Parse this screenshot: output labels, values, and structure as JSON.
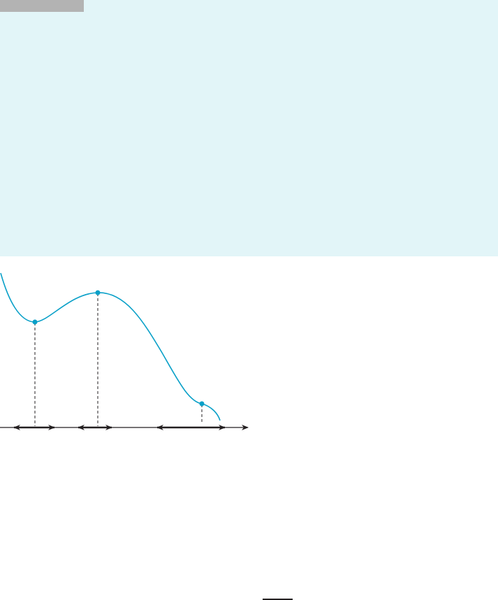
{
  "colors": {
    "panel_background": "#e2f5f8",
    "header_tab": "#b3b3b3",
    "curve": "#0aa0c8",
    "axis": "#231f20"
  },
  "figure": {
    "type": "function-graph",
    "critical_points": [
      "local-minimum",
      "local-maximum",
      "inflection-point"
    ]
  }
}
